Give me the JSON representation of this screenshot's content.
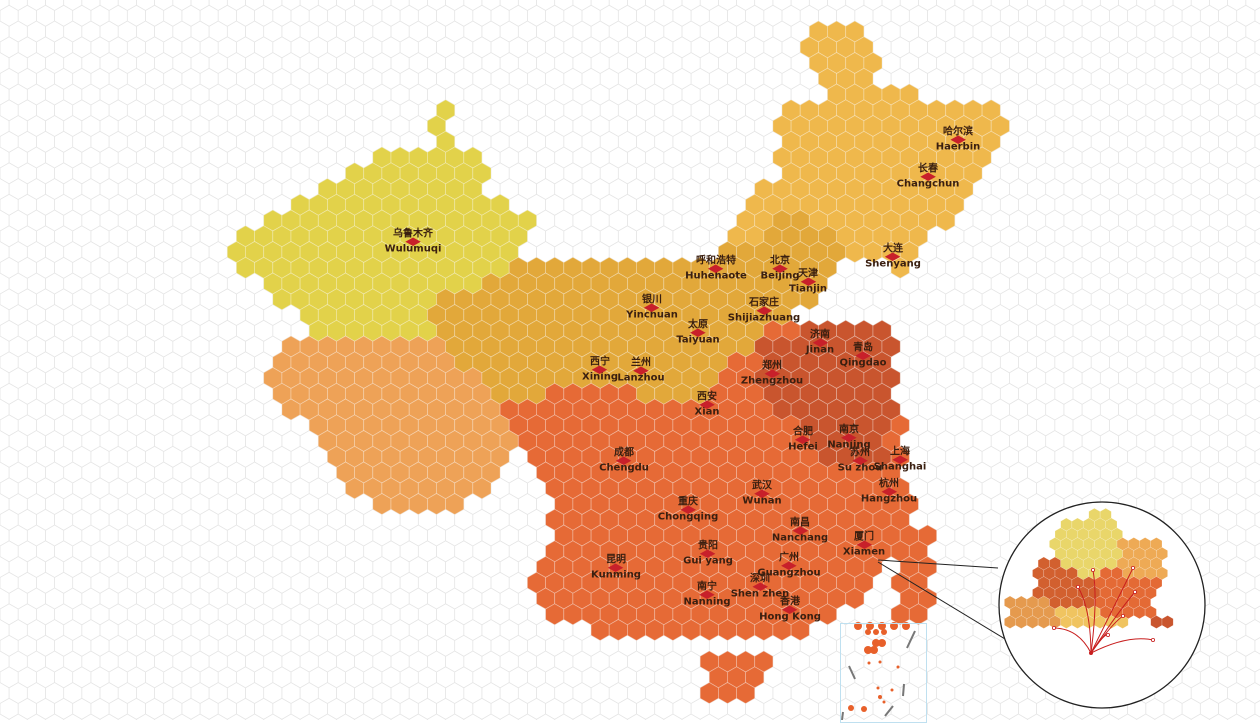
{
  "colors": {
    "xinjiang_yellow": "#e2d24a",
    "west_orange": "#eea257",
    "north_gold": "#e2a83a",
    "northeast_gold": "#efb84c",
    "south_red_orange": "#e66a36",
    "east_dark": "#c9552e",
    "marker_red": "#c8202a",
    "grid_line": "#e6e6e6"
  },
  "cities": [
    {
      "zh": "乌鲁木齐",
      "en": "Wulumuqi"
    },
    {
      "zh": "哈尔滨",
      "en": "Haerbin"
    },
    {
      "zh": "长春",
      "en": "Changchun"
    },
    {
      "zh": "大连",
      "en": "Shenyang"
    },
    {
      "zh": "呼和浩特",
      "en": "Huhehaote"
    },
    {
      "zh": "北京",
      "en": "Beijing"
    },
    {
      "zh": "天津",
      "en": "Tianjin"
    },
    {
      "zh": "银川",
      "en": "Yinchuan"
    },
    {
      "zh": "石家庄",
      "en": "Shijiazhuang"
    },
    {
      "zh": "太原",
      "en": "Taiyuan"
    },
    {
      "zh": "济南",
      "en": "Jinan"
    },
    {
      "zh": "青岛",
      "en": "Qingdao"
    },
    {
      "zh": "西宁",
      "en": "Xining"
    },
    {
      "zh": "兰州",
      "en": "Lanzhou"
    },
    {
      "zh": "郑州",
      "en": "Zhengzhou"
    },
    {
      "zh": "西安",
      "en": "Xian"
    },
    {
      "zh": "合肥",
      "en": "Hefei"
    },
    {
      "zh": "南京",
      "en": "Nanjing"
    },
    {
      "zh": "苏州",
      "en": "Su zhou"
    },
    {
      "zh": "上海",
      "en": "Shanghai"
    },
    {
      "zh": "成都",
      "en": "Chengdu"
    },
    {
      "zh": "杭州",
      "en": "Hangzhou"
    },
    {
      "zh": "武汉",
      "en": "Wuhan"
    },
    {
      "zh": "重庆",
      "en": "Chongqing"
    },
    {
      "zh": "南昌",
      "en": "Nanchang"
    },
    {
      "zh": "厦门",
      "en": "Xiamen"
    },
    {
      "zh": "贵阳",
      "en": "Gui yang"
    },
    {
      "zh": "昆明",
      "en": "Kunming"
    },
    {
      "zh": "广州",
      "en": "Guangzhou"
    },
    {
      "zh": "深圳",
      "en": "Shen zhen"
    },
    {
      "zh": "南宁",
      "en": "Nanning"
    },
    {
      "zh": "香港",
      "en": "Hong Kong"
    }
  ]
}
